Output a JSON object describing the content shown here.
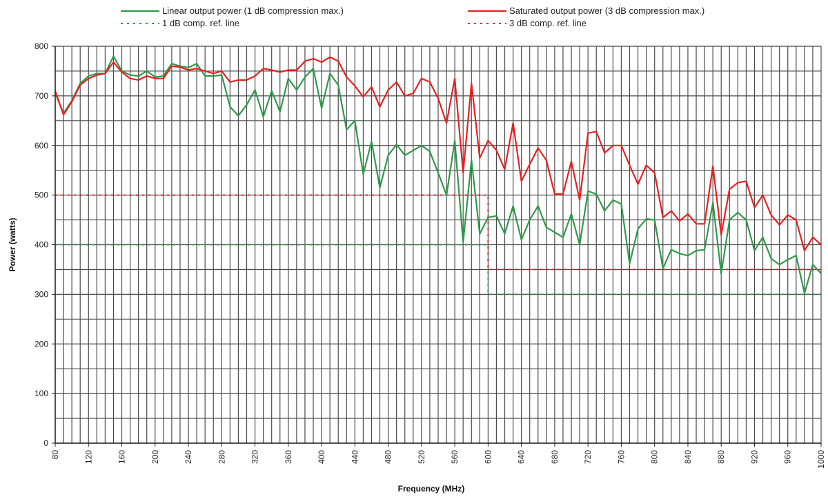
{
  "chart_data": {
    "type": "line",
    "xlabel": "Frequency (MHz)",
    "ylabel": "Power (watts)",
    "xlim": [
      80,
      1000
    ],
    "ylim": [
      0,
      800
    ],
    "x_ticks": [
      80,
      120,
      160,
      200,
      240,
      280,
      320,
      360,
      400,
      440,
      480,
      520,
      560,
      600,
      640,
      680,
      720,
      760,
      800,
      840,
      880,
      920,
      960,
      1000
    ],
    "y_ticks": [
      0,
      100,
      200,
      300,
      400,
      500,
      600,
      700,
      800
    ],
    "x_grid_step": 10,
    "y_grid_step": 50,
    "grid": true,
    "legend_position": "top",
    "series": [
      {
        "name": "Linear output power (1 dB compression max.)",
        "color": "#2e9a4a",
        "style": "solid",
        "points": [
          [
            80,
            705
          ],
          [
            90,
            665
          ],
          [
            100,
            690
          ],
          [
            110,
            725
          ],
          [
            120,
            740
          ],
          [
            130,
            745
          ],
          [
            140,
            745
          ],
          [
            150,
            780
          ],
          [
            160,
            750
          ],
          [
            170,
            742
          ],
          [
            180,
            740
          ],
          [
            190,
            750
          ],
          [
            200,
            738
          ],
          [
            210,
            740
          ],
          [
            220,
            765
          ],
          [
            230,
            760
          ],
          [
            240,
            757
          ],
          [
            250,
            765
          ],
          [
            260,
            740
          ],
          [
            270,
            740
          ],
          [
            280,
            742
          ],
          [
            290,
            678
          ],
          [
            300,
            660
          ],
          [
            310,
            682
          ],
          [
            320,
            712
          ],
          [
            330,
            658
          ],
          [
            340,
            710
          ],
          [
            350,
            668
          ],
          [
            360,
            735
          ],
          [
            370,
            712
          ],
          [
            380,
            738
          ],
          [
            390,
            755
          ],
          [
            400,
            675
          ],
          [
            410,
            745
          ],
          [
            420,
            722
          ],
          [
            430,
            632
          ],
          [
            440,
            650
          ],
          [
            450,
            542
          ],
          [
            460,
            608
          ],
          [
            470,
            515
          ],
          [
            480,
            580
          ],
          [
            490,
            602
          ],
          [
            500,
            580
          ],
          [
            510,
            590
          ],
          [
            520,
            600
          ],
          [
            530,
            588
          ],
          [
            540,
            545
          ],
          [
            550,
            500
          ],
          [
            560,
            610
          ],
          [
            570,
            405
          ],
          [
            580,
            570
          ],
          [
            590,
            422
          ],
          [
            600,
            455
          ],
          [
            610,
            458
          ],
          [
            620,
            422
          ],
          [
            630,
            478
          ],
          [
            640,
            410
          ],
          [
            650,
            450
          ],
          [
            660,
            478
          ],
          [
            670,
            435
          ],
          [
            680,
            425
          ],
          [
            690,
            415
          ],
          [
            700,
            462
          ],
          [
            710,
            400
          ],
          [
            720,
            508
          ],
          [
            730,
            502
          ],
          [
            740,
            468
          ],
          [
            750,
            490
          ],
          [
            760,
            482
          ],
          [
            770,
            362
          ],
          [
            780,
            432
          ],
          [
            790,
            452
          ],
          [
            800,
            450
          ],
          [
            810,
            352
          ],
          [
            820,
            390
          ],
          [
            830,
            382
          ],
          [
            840,
            378
          ],
          [
            850,
            388
          ],
          [
            860,
            390
          ],
          [
            870,
            485
          ],
          [
            880,
            342
          ],
          [
            890,
            450
          ],
          [
            900,
            465
          ],
          [
            910,
            450
          ],
          [
            920,
            388
          ],
          [
            930,
            415
          ],
          [
            940,
            372
          ],
          [
            950,
            360
          ],
          [
            960,
            370
          ],
          [
            970,
            378
          ],
          [
            980,
            302
          ],
          [
            990,
            360
          ],
          [
            1000,
            342
          ]
        ]
      },
      {
        "name": "Saturated output power (3 dB compression max.)",
        "color": "#e82020",
        "style": "solid",
        "points": [
          [
            80,
            710
          ],
          [
            90,
            662
          ],
          [
            100,
            688
          ],
          [
            110,
            722
          ],
          [
            120,
            735
          ],
          [
            130,
            742
          ],
          [
            140,
            745
          ],
          [
            150,
            768
          ],
          [
            160,
            748
          ],
          [
            170,
            735
          ],
          [
            180,
            732
          ],
          [
            190,
            740
          ],
          [
            200,
            735
          ],
          [
            210,
            735
          ],
          [
            220,
            760
          ],
          [
            230,
            758
          ],
          [
            240,
            752
          ],
          [
            250,
            755
          ],
          [
            260,
            750
          ],
          [
            270,
            745
          ],
          [
            280,
            750
          ],
          [
            290,
            728
          ],
          [
            300,
            732
          ],
          [
            310,
            732
          ],
          [
            320,
            740
          ],
          [
            330,
            755
          ],
          [
            340,
            752
          ],
          [
            350,
            748
          ],
          [
            360,
            752
          ],
          [
            370,
            752
          ],
          [
            380,
            770
          ],
          [
            390,
            775
          ],
          [
            400,
            768
          ],
          [
            410,
            778
          ],
          [
            420,
            770
          ],
          [
            430,
            738
          ],
          [
            440,
            720
          ],
          [
            450,
            698
          ],
          [
            460,
            718
          ],
          [
            470,
            678
          ],
          [
            480,
            712
          ],
          [
            490,
            728
          ],
          [
            500,
            700
          ],
          [
            510,
            705
          ],
          [
            520,
            735
          ],
          [
            530,
            728
          ],
          [
            540,
            695
          ],
          [
            550,
            645
          ],
          [
            560,
            735
          ],
          [
            570,
            545
          ],
          [
            580,
            725
          ],
          [
            590,
            575
          ],
          [
            600,
            610
          ],
          [
            610,
            590
          ],
          [
            620,
            552
          ],
          [
            630,
            645
          ],
          [
            640,
            528
          ],
          [
            650,
            562
          ],
          [
            660,
            595
          ],
          [
            670,
            570
          ],
          [
            680,
            502
          ],
          [
            690,
            502
          ],
          [
            700,
            568
          ],
          [
            710,
            490
          ],
          [
            720,
            625
          ],
          [
            730,
            628
          ],
          [
            740,
            585
          ],
          [
            750,
            600
          ],
          [
            760,
            600
          ],
          [
            770,
            560
          ],
          [
            780,
            522
          ],
          [
            790,
            560
          ],
          [
            800,
            545
          ],
          [
            810,
            455
          ],
          [
            820,
            468
          ],
          [
            830,
            448
          ],
          [
            840,
            462
          ],
          [
            850,
            442
          ],
          [
            860,
            442
          ],
          [
            870,
            558
          ],
          [
            880,
            420
          ],
          [
            890,
            512
          ],
          [
            900,
            525
          ],
          [
            910,
            528
          ],
          [
            920,
            475
          ],
          [
            930,
            500
          ],
          [
            940,
            460
          ],
          [
            950,
            440
          ],
          [
            960,
            460
          ],
          [
            970,
            450
          ],
          [
            980,
            388
          ],
          [
            990,
            415
          ],
          [
            1000,
            400
          ]
        ]
      },
      {
        "name": "1 dB comp. ref. line",
        "color": "#2e9a4a",
        "style": "dotted",
        "points": [
          [
            80,
            400
          ],
          [
            600,
            400
          ],
          [
            600,
            300
          ],
          [
            1000,
            300
          ]
        ]
      },
      {
        "name": "3 dB comp. ref. line",
        "color": "#e82020",
        "style": "dotted",
        "points": [
          [
            80,
            500
          ],
          [
            600,
            500
          ],
          [
            600,
            350
          ],
          [
            1000,
            350
          ]
        ]
      }
    ]
  }
}
